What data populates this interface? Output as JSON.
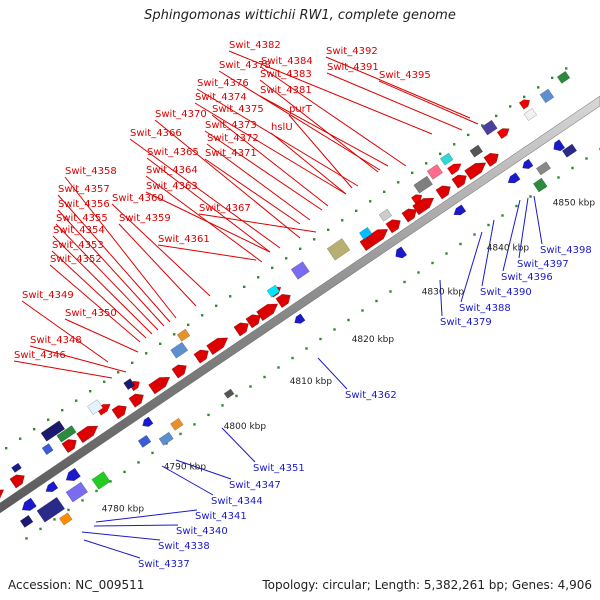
{
  "title": "Sphingomonas wittichii RW1, complete genome",
  "footer": {
    "accession": "Accession: NC_009511",
    "summary": "Topology: circular; Length: 5,382,261 bp; Genes: 4,906"
  },
  "scale_labels": [
    "4780 kbp",
    "4790 kbp",
    "4800 kbp",
    "4810 kbp",
    "4820 kbp",
    "4830 kbp",
    "4840 kbp",
    "4850 kbp"
  ],
  "forward_gene_labels": [
    "Swit_4382",
    "Swit_4392",
    "Swit_4384",
    "Swit_4378",
    "Swit_4391",
    "Swit_4383",
    "Swit_4395",
    "Swit_4376",
    "Swit_4381",
    "Swit_4374",
    "purT",
    "Swit_4375",
    "Swit_4370",
    "Swit_4373",
    "hslU",
    "Swit_4366",
    "Swit_4372",
    "Swit_4365",
    "Swit_4371",
    "Swit_4364",
    "Swit_4358",
    "Swit_4363",
    "Swit_4357",
    "Swit_4360",
    "Swit_4356",
    "Swit_4367",
    "Swit_4355",
    "Swit_4359",
    "Swit_4354",
    "Swit_4361",
    "Swit_4353",
    "Swit_4352",
    "Swit_4349",
    "Swit_4350",
    "Swit_4348",
    "Swit_4346"
  ],
  "reverse_gene_labels": [
    "Swit_4398",
    "Swit_4397",
    "Swit_4396",
    "Swit_4390",
    "Swit_4388",
    "Swit_4379",
    "Swit_4362",
    "Swit_4351",
    "Swit_4347",
    "Swit_4344",
    "Swit_4341",
    "Swit_4340",
    "Swit_4338",
    "Swit_4337"
  ],
  "colors": {
    "forward": "#dd0000",
    "reverse": "#1a1acc",
    "backbone": "#888888",
    "tick": "#2e8b2e"
  }
}
